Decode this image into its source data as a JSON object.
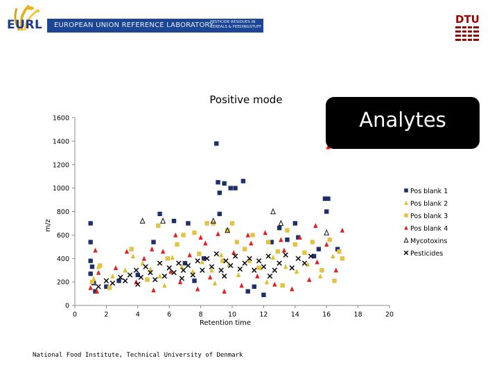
{
  "header": {
    "eurl_label": "EURL",
    "lab_name": "EUROPEAN UNION REFERENCE LABORATORY",
    "lab_sub": "PESTICIDE RESIDUES IN CEREALS & FEEDINGSTUFF",
    "dtu_label": "DTU"
  },
  "callout": {
    "text": "Analytes"
  },
  "footer": {
    "text": "National Food Institute, Technical University of Denmark"
  },
  "colors": {
    "brand_blue": "#1c4694",
    "dtu_red": "#990000",
    "pos_blank_1": "#1f2f6b",
    "pos_blank_2": "#d9c12f",
    "pos_blank_3": "#e4c244",
    "pos_blank_4": "#e32020",
    "mycotoxins": "#111111",
    "pesticides": "#111111"
  },
  "chart_data": {
    "type": "scatter",
    "title": "Positive mode",
    "xlabel": "Retention time",
    "ylabel": "m/z",
    "xlim": [
      0,
      20
    ],
    "ylim": [
      0,
      1600
    ],
    "xticks": [
      "0",
      "2",
      "4",
      "6",
      "8",
      "10",
      "12",
      "14",
      "16",
      "18",
      "20"
    ],
    "yticks": [
      "0",
      "200",
      "400",
      "600",
      "800",
      "1000",
      "1200",
      "1400",
      "1600"
    ],
    "grid": false,
    "legend_position": "right",
    "series": [
      {
        "name": "Pos blank 1",
        "marker": "square",
        "points": [
          [
            1.0,
            700
          ],
          [
            1.0,
            540
          ],
          [
            1.0,
            380
          ],
          [
            1.1,
            330
          ],
          [
            1.0,
            270
          ],
          [
            1.2,
            190
          ],
          [
            1.3,
            120
          ],
          [
            2.0,
            160
          ],
          [
            2.8,
            210
          ],
          [
            4.0,
            260
          ],
          [
            5.0,
            540
          ],
          [
            5.4,
            780
          ],
          [
            6.3,
            720
          ],
          [
            7.0,
            360
          ],
          [
            7.2,
            700
          ],
          [
            7.6,
            210
          ],
          [
            8.2,
            400
          ],
          [
            9.0,
            1380
          ],
          [
            9.1,
            1050
          ],
          [
            9.2,
            960
          ],
          [
            9.5,
            1040
          ],
          [
            9.9,
            1000
          ],
          [
            10.2,
            1000
          ],
          [
            10.7,
            1060
          ],
          [
            11.0,
            120
          ],
          [
            11.4,
            160
          ],
          [
            12.0,
            90
          ],
          [
            12.5,
            540
          ],
          [
            13.0,
            660
          ],
          [
            13.5,
            560
          ],
          [
            14.0,
            700
          ],
          [
            14.2,
            580
          ],
          [
            15.2,
            420
          ],
          [
            15.5,
            480
          ],
          [
            15.9,
            910
          ],
          [
            16.0,
            800
          ],
          [
            16.1,
            910
          ],
          [
            16.7,
            480
          ],
          [
            9.2,
            780
          ]
        ]
      },
      {
        "name": "Pos blank 2",
        "marker": "triangle",
        "points": [
          [
            1.2,
            230
          ],
          [
            1.5,
            330
          ],
          [
            2.4,
            250
          ],
          [
            3.2,
            300
          ],
          [
            3.7,
            420
          ],
          [
            4.3,
            360
          ],
          [
            4.8,
            310
          ],
          [
            5.4,
            250
          ],
          [
            6.2,
            410
          ],
          [
            6.8,
            330
          ],
          [
            7.5,
            290
          ],
          [
            8.1,
            370
          ],
          [
            8.7,
            300
          ],
          [
            9.3,
            430
          ],
          [
            9.8,
            350
          ],
          [
            10.4,
            260
          ],
          [
            11.1,
            380
          ],
          [
            11.8,
            320
          ],
          [
            12.6,
            410
          ],
          [
            13.4,
            330
          ],
          [
            14.1,
            290
          ],
          [
            14.8,
            350
          ],
          [
            15.6,
            250
          ],
          [
            16.4,
            420
          ],
          [
            5.7,
            170
          ],
          [
            8.9,
            190
          ],
          [
            12.2,
            200
          ]
        ]
      },
      {
        "name": "Pos blank 3",
        "marker": "square",
        "points": [
          [
            1.1,
            200
          ],
          [
            1.6,
            340
          ],
          [
            2.2,
            150
          ],
          [
            3.6,
            480
          ],
          [
            4.6,
            220
          ],
          [
            5.3,
            680
          ],
          [
            5.9,
            400
          ],
          [
            6.5,
            520
          ],
          [
            6.9,
            600
          ],
          [
            7.6,
            620
          ],
          [
            8.4,
            700
          ],
          [
            8.8,
            700
          ],
          [
            9.4,
            380
          ],
          [
            9.7,
            640
          ],
          [
            10.3,
            540
          ],
          [
            10.8,
            480
          ],
          [
            11.3,
            600
          ],
          [
            11.7,
            320
          ],
          [
            12.3,
            540
          ],
          [
            12.9,
            460
          ],
          [
            13.5,
            640
          ],
          [
            14.0,
            520
          ],
          [
            14.6,
            450
          ],
          [
            15.1,
            540
          ],
          [
            15.7,
            300
          ],
          [
            16.2,
            560
          ],
          [
            16.8,
            460
          ],
          [
            17.0,
            400
          ],
          [
            16.5,
            210
          ],
          [
            7.9,
            440
          ],
          [
            10.0,
            700
          ],
          [
            13.2,
            170
          ]
        ]
      },
      {
        "name": "Pos blank 4",
        "marker": "triangle",
        "points": [
          [
            1.0,
            150
          ],
          [
            1.3,
            470
          ],
          [
            1.4,
            120
          ],
          [
            1.5,
            280
          ],
          [
            2.6,
            320
          ],
          [
            3.3,
            460
          ],
          [
            3.9,
            200
          ],
          [
            4.4,
            400
          ],
          [
            5.0,
            130
          ],
          [
            5.6,
            460
          ],
          [
            6.1,
            290
          ],
          [
            6.7,
            200
          ],
          [
            7.3,
            430
          ],
          [
            7.8,
            140
          ],
          [
            8.3,
            530
          ],
          [
            8.6,
            240
          ],
          [
            9.1,
            610
          ],
          [
            9.5,
            120
          ],
          [
            10.1,
            450
          ],
          [
            10.6,
            170
          ],
          [
            11.2,
            530
          ],
          [
            11.6,
            250
          ],
          [
            12.1,
            620
          ],
          [
            12.7,
            180
          ],
          [
            13.3,
            470
          ],
          [
            13.8,
            140
          ],
          [
            14.3,
            580
          ],
          [
            14.9,
            220
          ],
          [
            15.4,
            370
          ],
          [
            16.0,
            520
          ],
          [
            16.1,
            1350
          ],
          [
            16.6,
            300
          ],
          [
            17.0,
            640
          ],
          [
            15.3,
            680
          ],
          [
            13.1,
            560
          ],
          [
            11.0,
            600
          ],
          [
            8.0,
            580
          ],
          [
            6.4,
            600
          ],
          [
            4.9,
            480
          ]
        ]
      },
      {
        "name": "Mycotoxins",
        "marker": "triangle-outline",
        "points": [
          [
            4.3,
            720
          ],
          [
            5.6,
            720
          ],
          [
            8.8,
            720
          ],
          [
            9.7,
            640
          ],
          [
            12.6,
            800
          ],
          [
            13.1,
            700
          ],
          [
            16.0,
            620
          ]
        ]
      },
      {
        "name": "Pesticides",
        "marker": "cross",
        "points": [
          [
            1.5,
            160
          ],
          [
            2.0,
            210
          ],
          [
            2.4,
            190
          ],
          [
            2.9,
            240
          ],
          [
            3.2,
            210
          ],
          [
            3.5,
            260
          ],
          [
            3.9,
            300
          ],
          [
            4.2,
            240
          ],
          [
            4.5,
            330
          ],
          [
            4.8,
            280
          ],
          [
            5.1,
            220
          ],
          [
            5.4,
            360
          ],
          [
            5.7,
            250
          ],
          [
            6.0,
            320
          ],
          [
            6.3,
            280
          ],
          [
            6.6,
            360
          ],
          [
            6.9,
            300
          ],
          [
            7.2,
            340
          ],
          [
            7.5,
            260
          ],
          [
            7.8,
            380
          ],
          [
            8.1,
            300
          ],
          [
            8.4,
            400
          ],
          [
            8.7,
            330
          ],
          [
            9.0,
            440
          ],
          [
            9.3,
            300
          ],
          [
            9.6,
            380
          ],
          [
            9.9,
            340
          ],
          [
            10.2,
            420
          ],
          [
            10.5,
            310
          ],
          [
            10.8,
            360
          ],
          [
            11.1,
            400
          ],
          [
            11.4,
            300
          ],
          [
            11.7,
            380
          ],
          [
            12.0,
            330
          ],
          [
            12.3,
            420
          ],
          [
            12.7,
            300
          ],
          [
            13.0,
            360
          ],
          [
            13.4,
            430
          ],
          [
            13.8,
            320
          ],
          [
            14.2,
            400
          ],
          [
            14.6,
            360
          ],
          [
            15.0,
            420
          ],
          [
            4.0,
            180
          ],
          [
            6.8,
            230
          ],
          [
            9.5,
            250
          ],
          [
            12.4,
            250
          ]
        ]
      }
    ]
  }
}
